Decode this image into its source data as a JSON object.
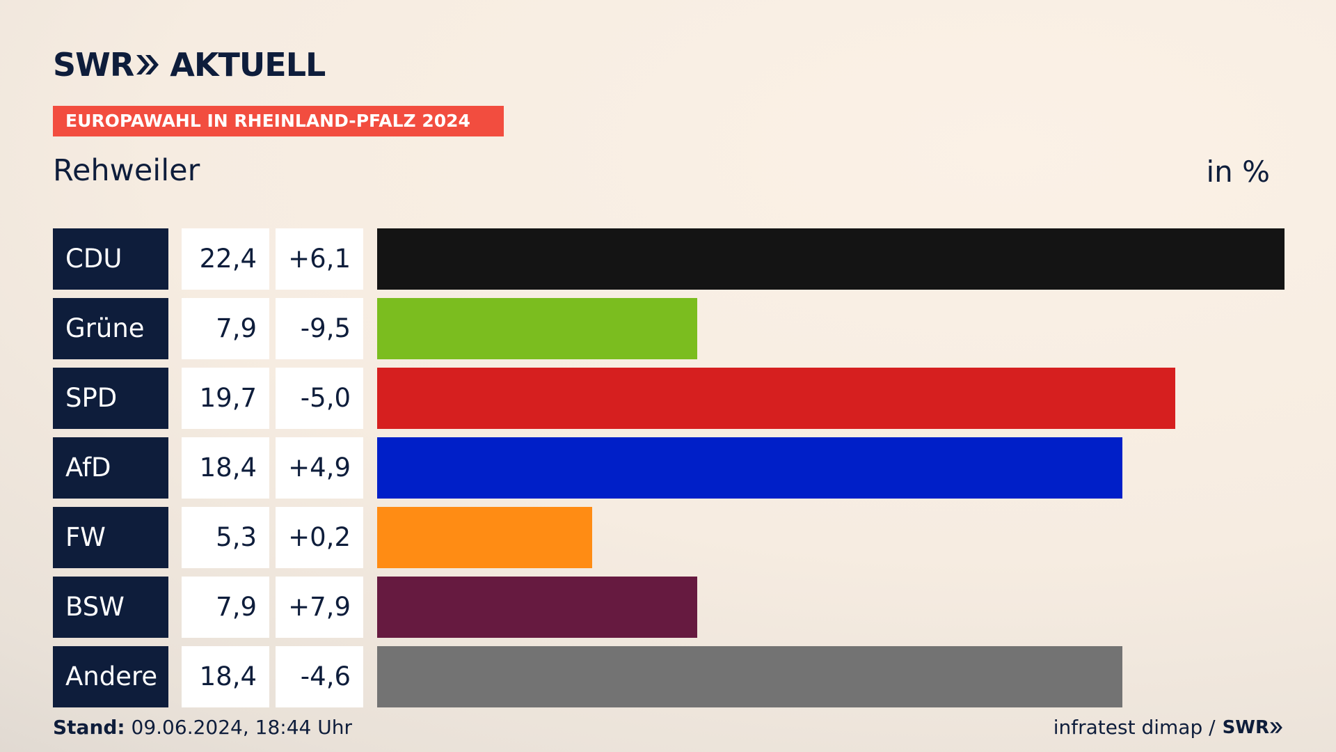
{
  "header": {
    "logo_left": "SWR",
    "logo_right": "AKTUELL",
    "banner": "EUROPAWAHL IN RHEINLAND-PFALZ 2024",
    "place": "Rehweiler",
    "unit": "in %"
  },
  "chart_data": {
    "type": "bar",
    "categories": [
      "CDU",
      "Grüne",
      "SPD",
      "AfD",
      "FW",
      "BSW",
      "Andere"
    ],
    "values": [
      22.4,
      7.9,
      19.7,
      18.4,
      5.3,
      7.9,
      18.4
    ],
    "value_labels": [
      "22,4",
      "7,9",
      "19,7",
      "18,4",
      "5,3",
      "7,9",
      "18,4"
    ],
    "diff_labels": [
      "+6,1",
      "-9,5",
      "-5,0",
      "+4,9",
      "+0,2",
      "+7,9",
      "-4,6"
    ],
    "colors": [
      "#141414",
      "#7bbd1f",
      "#d61f1f",
      "#001fc8",
      "#ff8c14",
      "#661a40",
      "#737373"
    ],
    "xlim": [
      0,
      22.4
    ]
  },
  "footer": {
    "stand_label": "Stand:",
    "stand_value": "09.06.2024, 18:44 Uhr",
    "source": "infratest dimap /",
    "source_logo": "SWR"
  }
}
